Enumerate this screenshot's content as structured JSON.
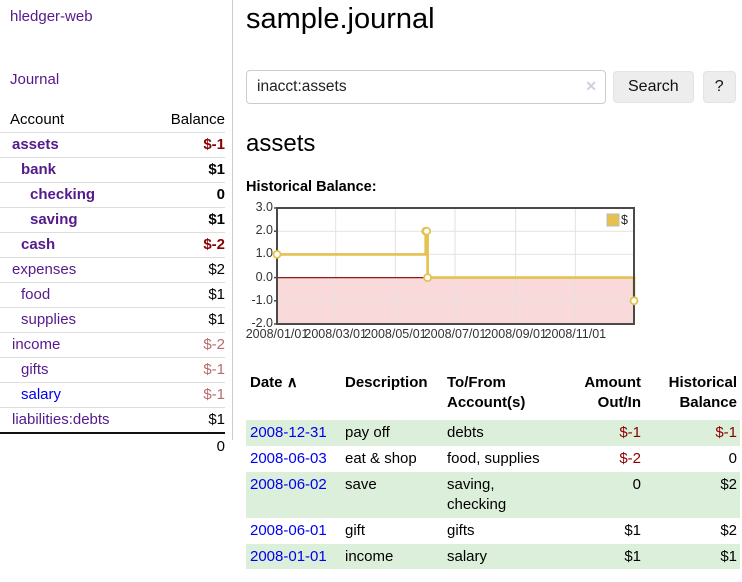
{
  "sidebar": {
    "brand": "hledger-web",
    "journal_link": "Journal",
    "headers": {
      "account": "Account",
      "balance": "Balance"
    },
    "accounts": [
      {
        "name": "assets",
        "balance": "$-1",
        "level": 1,
        "bold": true,
        "neg": "strong"
      },
      {
        "name": "bank",
        "balance": "$1",
        "level": 2,
        "bold": true
      },
      {
        "name": "checking",
        "balance": "0",
        "level": 3,
        "bold": true
      },
      {
        "name": "saving",
        "balance": "$1",
        "level": 3,
        "bold": true
      },
      {
        "name": "cash",
        "balance": "$-2",
        "level": 2,
        "bold": true,
        "neg": "strong"
      },
      {
        "name": "expenses",
        "balance": "$2",
        "level": 1
      },
      {
        "name": "food",
        "balance": "$1",
        "level": 2
      },
      {
        "name": "supplies",
        "balance": "$1",
        "level": 2
      },
      {
        "name": "income",
        "balance": "$-2",
        "level": 1,
        "neg": "muted"
      },
      {
        "name": "gifts",
        "balance": "$-1",
        "level": 2,
        "neg": "muted"
      },
      {
        "name": "salary",
        "balance": "$-1",
        "level": 2,
        "neg": "muted",
        "link": "unvisited"
      },
      {
        "name": "liabilities:debts",
        "balance": "$1",
        "level": 1
      }
    ],
    "total": "0"
  },
  "main": {
    "title": "sample.journal",
    "search": {
      "value": "inacct:assets",
      "clear_icon": "✕",
      "search_button": "Search",
      "help_button": "?"
    },
    "account_heading": "assets",
    "section_label": "Historical Balance:"
  },
  "chart_data": {
    "type": "line",
    "step": true,
    "title": "Historical Balance:",
    "x_range": [
      "2008-01-01",
      "2008-12-31"
    ],
    "ylim": [
      -2,
      3
    ],
    "y_ticks": [
      "3.0",
      "2.0",
      "1.0",
      "0.0",
      "-1.0",
      "-2.0"
    ],
    "x_tick_dates": [
      "2008-01-01",
      "2008-03-01",
      "2008-05-01",
      "2008-07-01",
      "2008-09-01",
      "2008-11-01"
    ],
    "x_tick_labels": [
      "2008/01/01",
      "2008/03/01",
      "2008/05/01",
      "2008/07/01",
      "2008/09/01",
      "2008/11/01"
    ],
    "series": [
      {
        "name": "$",
        "color": "#e5c14f",
        "points": [
          [
            "2008-01-01",
            1
          ],
          [
            "2008-06-01",
            2
          ],
          [
            "2008-06-02",
            2
          ],
          [
            "2008-06-03",
            0
          ],
          [
            "2008-12-31",
            -1
          ]
        ]
      }
    ],
    "legend": {
      "label": "$",
      "position": "top-right"
    },
    "colors": {
      "grid": "#e2e2e2",
      "frame": "#4a4a4a",
      "zero_line": "#8b1a1a",
      "negative_region": "#f9d9d9"
    }
  },
  "register": {
    "headers": {
      "date": "Date",
      "description": "Description",
      "accounts": "To/From Account(s)",
      "amount": "Amount Out/In",
      "balance": "Historical Balance"
    },
    "sort_icon": "∧",
    "rows": [
      {
        "date": "2008-12-31",
        "description": "pay off",
        "accounts": "debts",
        "amount": "$-1",
        "amount_neg": true,
        "balance": "$-1",
        "balance_neg": true
      },
      {
        "date": "2008-06-03",
        "description": "eat & shop",
        "accounts": "food, supplies",
        "amount": "$-2",
        "amount_neg": true,
        "balance": "0"
      },
      {
        "date": "2008-06-02",
        "description": "save",
        "accounts": "saving, checking",
        "amount": "0",
        "balance": "$2"
      },
      {
        "date": "2008-06-01",
        "description": "gift",
        "accounts": "gifts",
        "amount": "$1",
        "balance": "$2"
      },
      {
        "date": "2008-01-01",
        "description": "income",
        "accounts": "salary",
        "amount": "$1",
        "balance": "$1"
      }
    ]
  },
  "colors": {
    "stripe_green": "#dcefdb",
    "link_visited": "#551a8b",
    "link_unvisited": "#0000ee",
    "negative_strong": "#8b0000",
    "negative_muted": "#b96a6a",
    "accent_gold": "#e5c14f"
  }
}
